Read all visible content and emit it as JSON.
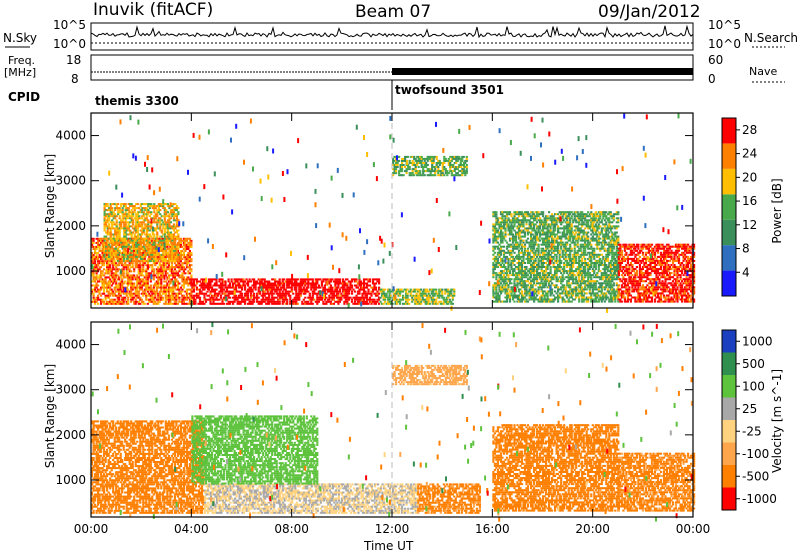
{
  "header": {
    "station": "Inuvik (fitACF)",
    "beam": "Beam 07",
    "date": "09/Jan/2012"
  },
  "params": {
    "nsky_label": "N.Sky",
    "nsky_ticks": [
      "10^5",
      "10^0"
    ],
    "nsearch_label": "N.Search",
    "nsearch_ticks": [
      "10^5",
      "10^0"
    ],
    "freq_label": "Freq.",
    "freq_unit": "[MHz]",
    "freq_ticks": [
      18,
      8
    ],
    "nave_label": "Nave",
    "nave_ticks": [
      60,
      0
    ],
    "cpid_label": "CPID",
    "cpid_segments": [
      {
        "name": "themis 3300",
        "start_hour": 0
      },
      {
        "name": "twofsound 3501",
        "start_hour": 12
      }
    ]
  },
  "chart_data": [
    {
      "type": "heatmap",
      "quantity": "Power",
      "ylabel": "Slant Range [km]",
      "xlabel": "Time UT",
      "x_ticks": [
        "00:00",
        "04:00",
        "08:00",
        "12:00",
        "16:00",
        "20:00",
        "00:00"
      ],
      "xlim_hours": [
        0,
        24
      ],
      "y_ticks": [
        1000,
        2000,
        3000,
        4000
      ],
      "ylim": [
        180,
        4500
      ],
      "colorbar": {
        "label": "Power [dB]",
        "ticks": [
          4,
          8,
          12,
          16,
          20,
          24,
          28
        ],
        "range": [
          0,
          30
        ],
        "colors": [
          "#1a1aff",
          "#2e6fbf",
          "#3a8f5a",
          "#48a94a",
          "#ffbf00",
          "#ff7f00",
          "#ff0000"
        ]
      },
      "regions": [
        {
          "t": [
            0.0,
            4.0
          ],
          "r": [
            250,
            1700
          ],
          "level": 24
        },
        {
          "t": [
            4.0,
            11.5
          ],
          "r": [
            250,
            800
          ],
          "level": 30
        },
        {
          "t": [
            0.5,
            3.5
          ],
          "r": [
            1200,
            2500
          ],
          "level": 20
        },
        {
          "t": [
            11.5,
            14.5
          ],
          "r": [
            250,
            600
          ],
          "level": 16
        },
        {
          "t": [
            16.0,
            21.0
          ],
          "r": [
            300,
            2300
          ],
          "level": 14
        },
        {
          "t": [
            21.0,
            24.0
          ],
          "r": [
            300,
            1600
          ],
          "level": 28
        },
        {
          "t": [
            12.0,
            15.0
          ],
          "r": [
            3100,
            3550
          ],
          "level": 14
        }
      ]
    },
    {
      "type": "heatmap",
      "quantity": "Velocity",
      "ylabel": "Slant Range [km]",
      "xlabel": "Time UT",
      "x_ticks": [
        "00:00",
        "04:00",
        "08:00",
        "12:00",
        "16:00",
        "20:00",
        "00:00"
      ],
      "xlim_hours": [
        0,
        24
      ],
      "y_ticks": [
        1000,
        2000,
        3000,
        4000
      ],
      "ylim": [
        180,
        4500
      ],
      "colorbar": {
        "label": "Velocity [m s^-1]",
        "ticks": [
          1000,
          500,
          100,
          25,
          -25,
          -100,
          -500,
          -1000
        ],
        "colors": [
          "#1a3fbf",
          "#2f8f4f",
          "#5dc23c",
          "#a8a8a8",
          "#ffd27f",
          "#ffa64d",
          "#ff7f00",
          "#ff0000"
        ]
      },
      "regions": [
        {
          "t": [
            0.0,
            4.5
          ],
          "r": [
            250,
            2300
          ],
          "vel": -200
        },
        {
          "t": [
            4.5,
            13.0
          ],
          "r": [
            250,
            900
          ],
          "vel": 20
        },
        {
          "t": [
            4.0,
            9.0
          ],
          "r": [
            900,
            2400
          ],
          "vel": 300
        },
        {
          "t": [
            13.0,
            15.5
          ],
          "r": [
            250,
            900
          ],
          "vel": -150
        },
        {
          "t": [
            16.0,
            21.0
          ],
          "r": [
            300,
            2200
          ],
          "vel": -300
        },
        {
          "t": [
            21.0,
            24.0
          ],
          "r": [
            300,
            1600
          ],
          "vel": -150
        },
        {
          "t": [
            12.0,
            15.0
          ],
          "r": [
            3100,
            3550
          ],
          "vel": -60
        }
      ]
    }
  ]
}
